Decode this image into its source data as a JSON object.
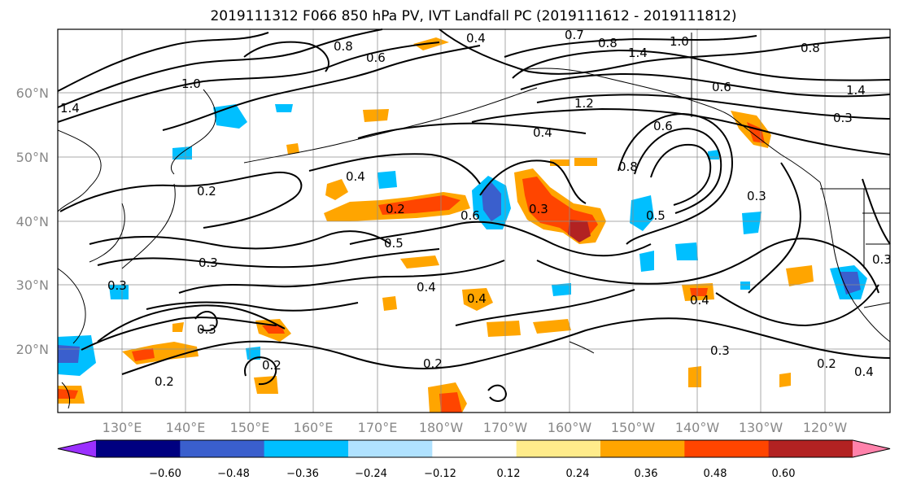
{
  "title": "2019111312 F066 850 hPa PV, IVT Landfall PC (2019111612 - 2019111812)",
  "map": {
    "lat_labels": [
      "60°N",
      "50°N",
      "40°N",
      "30°N",
      "20°N"
    ],
    "lon_labels": [
      "130°E",
      "140°E",
      "150°E",
      "160°E",
      "170°E",
      "180°W",
      "170°W",
      "160°W",
      "150°W",
      "140°W",
      "130°W",
      "120°W"
    ],
    "grid_color": "#8c8c8c",
    "coast_color": "#000000",
    "contour_labels": [
      "1.4",
      "1.0",
      "0.8",
      "0.6",
      "0.4",
      "0.7",
      "0.8",
      "1.0",
      "1.4",
      "0.8",
      "0.6",
      "0.4",
      "1.4",
      "1.2",
      "0.2",
      "0.4",
      "0.2",
      "0.6",
      "0.3",
      "0.6",
      "0.8",
      "0.5",
      "0.3",
      "0.3",
      "0.5",
      "0.4",
      "0.3",
      "0.2",
      "0.4",
      "0.3",
      "0.4",
      "0.2",
      "0.2",
      "0.3",
      "0.2",
      "0.4",
      "0.3",
      "0.3"
    ]
  },
  "colorbar": {
    "ticks": [
      "−0.60",
      "−0.48",
      "−0.36",
      "−0.24",
      "−0.12",
      "0.12",
      "0.24",
      "0.36",
      "0.48",
      "0.60"
    ],
    "colors": [
      "#9b30ff",
      "#000080",
      "#3a5fcd",
      "#00bfff",
      "#b0e2ff",
      "#ffffff",
      "#ffec8b",
      "#ffa500",
      "#ff4500",
      "#b22222",
      "#ff82ab"
    ]
  }
}
